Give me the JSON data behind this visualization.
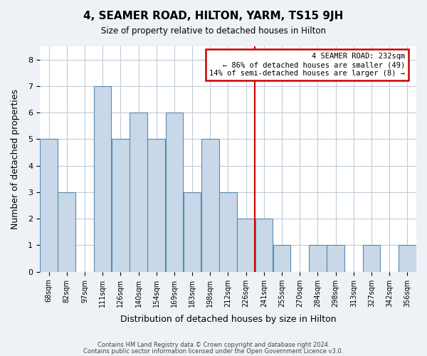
{
  "title": "4, SEAMER ROAD, HILTON, YARM, TS15 9JH",
  "subtitle": "Size of property relative to detached houses in Hilton",
  "xlabel": "Distribution of detached houses by size in Hilton",
  "ylabel": "Number of detached properties",
  "bin_labels": [
    "68sqm",
    "82sqm",
    "97sqm",
    "111sqm",
    "126sqm",
    "140sqm",
    "154sqm",
    "169sqm",
    "183sqm",
    "198sqm",
    "212sqm",
    "226sqm",
    "241sqm",
    "255sqm",
    "270sqm",
    "284sqm",
    "298sqm",
    "313sqm",
    "327sqm",
    "342sqm",
    "356sqm"
  ],
  "bar_heights": [
    5,
    3,
    0,
    7,
    5,
    6,
    5,
    6,
    3,
    5,
    3,
    2,
    2,
    1,
    0,
    1,
    1,
    0,
    1,
    0,
    1
  ],
  "bar_color": "#c8d8e8",
  "bar_edge_color": "#5a8ab0",
  "vline_x_index": 11.5,
  "vline_color": "#cc0000",
  "annotation_title": "4 SEAMER ROAD: 232sqm",
  "annotation_line1": "← 86% of detached houses are smaller (49)",
  "annotation_line2": "14% of semi-detached houses are larger (8) →",
  "annotation_box_color": "#cc0000",
  "ylim": [
    0,
    8.5
  ],
  "yticks": [
    0,
    1,
    2,
    3,
    4,
    5,
    6,
    7,
    8
  ],
  "footer1": "Contains HM Land Registry data © Crown copyright and database right 2024.",
  "footer2": "Contains public sector information licensed under the Open Government Licence v3.0.",
  "background_color": "#eef2f7",
  "plot_background_color": "#ffffff",
  "grid_color": "#c0ccd8"
}
